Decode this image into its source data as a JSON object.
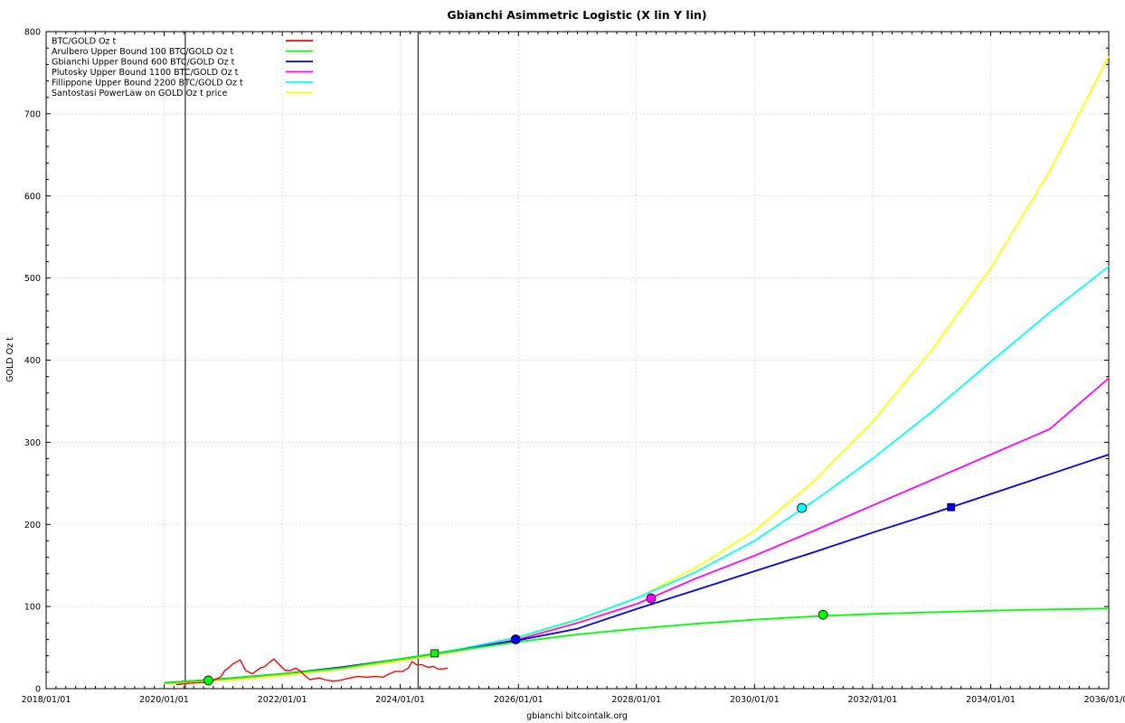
{
  "chart_data": {
    "type": "line",
    "title": "Gbianchi Asimmetric Logistic (X lin Y lin)",
    "xlabel": "gbianchi bitcointalk.org",
    "ylabel": "GOLD Oz t",
    "x_range": [
      "2018/01/01",
      "2036/01/01"
    ],
    "ylim": [
      0,
      800
    ],
    "x_ticks": [
      "2018/01/01",
      "2020/01/01",
      "2022/01/01",
      "2024/01/01",
      "2026/01/01",
      "2028/01/01",
      "2030/01/01",
      "2032/01/01",
      "2034/01/01",
      "2036/01/01"
    ],
    "y_ticks": [
      "0",
      "100",
      "200",
      "300",
      "400",
      "500",
      "600",
      "700",
      "800"
    ],
    "grid": true,
    "legend_position": "top-left",
    "vertical_markers": [
      "2020/05/11",
      "2024/04/20"
    ],
    "series": [
      {
        "name": "BTC/GOLD Oz t",
        "color": "#ff0000",
        "points": [
          [
            "2020/03/15",
            5
          ],
          [
            "2020/06/01",
            6.5
          ],
          [
            "2020/09/01",
            7.5
          ],
          [
            "2020/11/01",
            10
          ],
          [
            "2020/12/15",
            14
          ],
          [
            "2021/01/10",
            22
          ],
          [
            "2021/02/01",
            25
          ],
          [
            "2021/03/01",
            30
          ],
          [
            "2021/04/15",
            35
          ],
          [
            "2021/05/20",
            22
          ],
          [
            "2021/07/01",
            18
          ],
          [
            "2021/08/15",
            25
          ],
          [
            "2021/09/15",
            27
          ],
          [
            "2021/10/20",
            33
          ],
          [
            "2021/11/10",
            36
          ],
          [
            "2021/12/15",
            29
          ],
          [
            "2022/01/20",
            22
          ],
          [
            "2022/02/20",
            22
          ],
          [
            "2022/03/25",
            25
          ],
          [
            "2022/04/20",
            22
          ],
          [
            "2022/05/20",
            16
          ],
          [
            "2022/06/20",
            11
          ],
          [
            "2022/08/15",
            13
          ],
          [
            "2022/09/20",
            11
          ],
          [
            "2022/11/10",
            9
          ],
          [
            "2022/12/20",
            10
          ],
          [
            "2023/02/01",
            12
          ],
          [
            "2023/03/20",
            14
          ],
          [
            "2023/04/15",
            15
          ],
          [
            "2023/06/01",
            14
          ],
          [
            "2023/08/01",
            15
          ],
          [
            "2023/09/15",
            14
          ],
          [
            "2023/10/25",
            18
          ],
          [
            "2023/12/01",
            21
          ],
          [
            "2024/01/15",
            21
          ],
          [
            "2024/02/20",
            25
          ],
          [
            "2024/03/14",
            33
          ],
          [
            "2024/04/10",
            29
          ],
          [
            "2024/05/15",
            29
          ],
          [
            "2024/06/20",
            26
          ],
          [
            "2024/07/25",
            27
          ],
          [
            "2024/08/20",
            24
          ],
          [
            "2024/09/20",
            24
          ],
          [
            "2024/10/20",
            25
          ]
        ]
      },
      {
        "name": "Arulbero Upper Bound 100  BTC/GOLD Oz t",
        "color": "#00ff00",
        "points": [
          [
            "2020/01/01",
            7
          ],
          [
            "2021/01/01",
            12
          ],
          [
            "2022/01/01",
            18
          ],
          [
            "2023/01/01",
            25
          ],
          [
            "2024/01/01",
            36
          ],
          [
            "2025/01/01",
            47
          ],
          [
            "2026/01/01",
            57
          ],
          [
            "2027/01/01",
            66
          ],
          [
            "2028/01/01",
            73
          ],
          [
            "2029/01/01",
            79
          ],
          [
            "2030/01/01",
            84
          ],
          [
            "2031/01/01",
            88
          ],
          [
            "2032/01/01",
            91
          ],
          [
            "2033/01/01",
            93
          ],
          [
            "2034/01/01",
            95
          ],
          [
            "2035/01/01",
            96.5
          ],
          [
            "2036/01/01",
            97.5
          ]
        ],
        "markers": [
          {
            "x": "2020/10/01",
            "y": 10,
            "shape": "circle"
          },
          {
            "x": "2024/08/01",
            "y": 43,
            "shape": "square"
          },
          {
            "x": "2031/03/01",
            "y": 90,
            "shape": "circle"
          }
        ]
      },
      {
        "name": "Gbianchi Upper Bound 600  BTC/GOLD Oz t",
        "color": "#0000ee",
        "points": [
          [
            "2020/01/01",
            7
          ],
          [
            "2021/01/01",
            12
          ],
          [
            "2022/01/01",
            18
          ],
          [
            "2023/01/01",
            26
          ],
          [
            "2024/01/01",
            36
          ],
          [
            "2025/01/01",
            47
          ],
          [
            "2026/01/01",
            59
          ],
          [
            "2027/01/01",
            73
          ],
          [
            "2028/01/01",
            97
          ],
          [
            "2029/01/01",
            120
          ],
          [
            "2030/01/01",
            143
          ],
          [
            "2031/01/01",
            166
          ],
          [
            "2032/01/01",
            190
          ],
          [
            "2033/01/01",
            213
          ],
          [
            "2034/01/01",
            237
          ],
          [
            "2035/01/01",
            261
          ],
          [
            "2036/01/01",
            285
          ]
        ],
        "markers": [
          {
            "x": "2025/12/15",
            "y": 60,
            "shape": "circle"
          },
          {
            "x": "2033/05/01",
            "y": 221,
            "shape": "square"
          }
        ]
      },
      {
        "name": "Plutosky Upper Bound 1100  BTC/GOLD Oz t",
        "color": "#ff00ff",
        "points": [
          [
            "2020/01/01",
            7
          ],
          [
            "2021/01/01",
            12
          ],
          [
            "2022/01/01",
            18
          ],
          [
            "2023/01/01",
            26
          ],
          [
            "2024/01/01",
            36
          ],
          [
            "2025/01/01",
            47
          ],
          [
            "2026/01/01",
            60
          ],
          [
            "2027/01/01",
            80
          ],
          [
            "2028/01/01",
            103
          ],
          [
            "2029/01/01",
            134
          ],
          [
            "2030/01/01",
            162
          ],
          [
            "2031/01/01",
            192
          ],
          [
            "2032/01/01",
            223
          ],
          [
            "2033/01/01",
            254
          ],
          [
            "2034/01/01",
            285
          ],
          [
            "2035/01/01",
            316
          ],
          [
            "2036/01/01",
            378
          ]
        ],
        "markers": [
          {
            "x": "2028/04/01",
            "y": 110,
            "shape": "circle"
          }
        ]
      },
      {
        "name": "Fillippone Upper Bound 2200  BTC/GOLD Oz t",
        "color": "#00ffff",
        "points": [
          [
            "2020/01/01",
            7
          ],
          [
            "2021/01/01",
            12
          ],
          [
            "2022/01/01",
            18
          ],
          [
            "2023/01/01",
            26
          ],
          [
            "2024/01/01",
            36
          ],
          [
            "2025/01/01",
            48
          ],
          [
            "2026/01/01",
            63
          ],
          [
            "2027/01/01",
            84
          ],
          [
            "2028/01/01",
            110
          ],
          [
            "2029/01/01",
            142
          ],
          [
            "2030/01/01",
            180
          ],
          [
            "2031/01/01",
            228
          ],
          [
            "2032/01/01",
            280
          ],
          [
            "2033/01/01",
            337
          ],
          [
            "2034/01/01",
            398
          ],
          [
            "2035/01/01",
            458
          ],
          [
            "2036/01/01",
            514
          ]
        ],
        "markers": [
          {
            "x": "2030/10/20",
            "y": 220,
            "shape": "circle"
          }
        ]
      },
      {
        "name": "Santostasi PowerLaw on GOLD Oz t price",
        "color": "#ffff00",
        "points": [
          [
            "2020/01/01",
            6
          ],
          [
            "2021/01/01",
            10
          ],
          [
            "2022/01/01",
            16
          ],
          [
            "2023/01/01",
            24
          ],
          [
            "2024/01/01",
            34
          ],
          [
            "2025/01/01",
            46
          ],
          [
            "2026/01/01",
            62
          ],
          [
            "2027/01/01",
            83
          ],
          [
            "2028/01/01",
            110
          ],
          [
            "2029/01/01",
            147
          ],
          [
            "2030/01/01",
            192
          ],
          [
            "2031/01/01",
            252
          ],
          [
            "2032/01/01",
            325
          ],
          [
            "2033/01/01",
            412
          ],
          [
            "2034/01/01",
            512
          ],
          [
            "2035/01/01",
            630
          ],
          [
            "2036/01/01",
            770
          ]
        ]
      }
    ]
  }
}
